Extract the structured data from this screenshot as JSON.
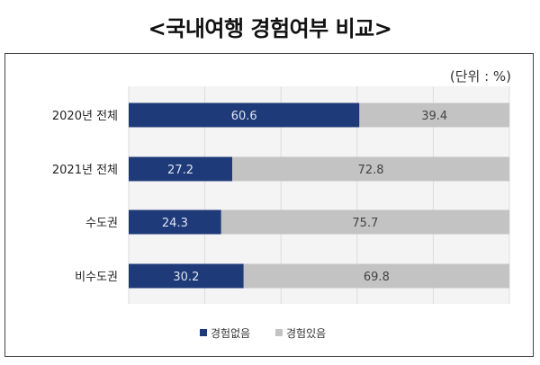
{
  "chart_data": {
    "type": "bar",
    "orientation": "horizontal",
    "stacked": true,
    "title": "<국내여행 경험여부 비교>",
    "unit_label": "(단위 : %)",
    "categories": [
      "2020년 전체",
      "2021년 전체",
      "수도권",
      "비수도권"
    ],
    "series": [
      {
        "name": "경험없음",
        "values": [
          60.6,
          27.2,
          24.3,
          30.2
        ],
        "color": "#1f3a78",
        "label_color": "#dde4f2"
      },
      {
        "name": "경험있음",
        "values": [
          39.4,
          72.8,
          75.7,
          69.8
        ],
        "color": "#c3c3c3",
        "label_color": "#444444"
      }
    ],
    "xlim": [
      0,
      100
    ],
    "grid": true,
    "legend_position": "bottom"
  }
}
